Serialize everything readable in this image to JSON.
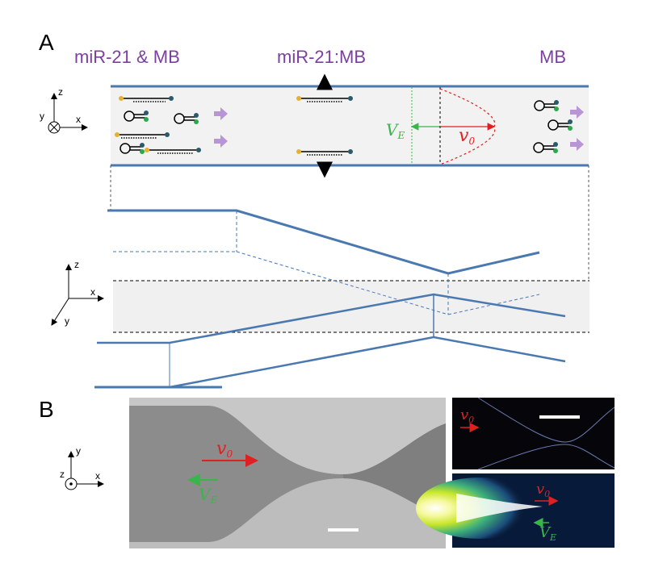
{
  "panel_a": {
    "letter": "A",
    "labels": {
      "left": "miR-21 & MB",
      "middle": "miR-21:MB",
      "right": "MB"
    },
    "axes_top": {
      "z": "z",
      "y": "y",
      "x": "x"
    },
    "axes_mid": {
      "z": "z",
      "x": "x",
      "y": "y"
    },
    "velocity_e": {
      "main": "V",
      "sub": "E"
    },
    "velocity_0": {
      "main": "v",
      "sub": "0"
    }
  },
  "panel_b": {
    "letter": "B",
    "axes": {
      "y": "y",
      "z": "z",
      "x": "x"
    },
    "v0": {
      "main": "v",
      "sub": "0"
    },
    "ve": {
      "main": "V",
      "sub": "E"
    },
    "tr_v0": {
      "main": "v",
      "sub": "0"
    },
    "br_v0": {
      "main": "v",
      "sub": "0"
    },
    "br_ve": {
      "main": "V",
      "sub": "E"
    }
  },
  "colors": {
    "purple": "#7b3fa0",
    "channel": "#4a78b0",
    "green": "#3ab54a",
    "red": "#e02020",
    "arrow_purple": "#b896d6"
  }
}
